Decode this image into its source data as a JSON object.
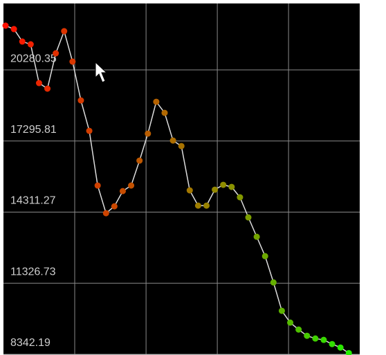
{
  "chart_data": {
    "type": "line",
    "x": [
      0,
      1,
      2,
      3,
      4,
      5,
      6,
      7,
      8,
      9,
      10,
      11,
      12,
      13,
      14,
      15,
      16,
      17,
      18,
      19,
      20,
      21,
      22,
      23,
      24,
      25,
      26,
      27,
      28,
      29,
      30,
      31,
      32,
      33,
      34,
      35,
      36,
      37,
      38,
      39,
      40,
      41
    ],
    "values": [
      22140,
      21995,
      21471,
      21355,
      19728,
      19495,
      20977,
      21907,
      20629,
      19001,
      17723,
      15427,
      14265,
      14555,
      15194,
      15427,
      16473,
      17606,
      18943,
      18478,
      17316,
      17083,
      15224,
      14584,
      14584,
      15253,
      15456,
      15369,
      14933,
      14090,
      13277,
      12463,
      11359,
      10167,
      9673,
      9382,
      9121,
      9005,
      8947,
      8772,
      8627,
      8394
    ],
    "line_color": "#dddddd",
    "point_colors": [
      "#ff1100",
      "#dd3300",
      "#c84a00",
      "#aa7000",
      "#889400",
      "#55bb00",
      "#22ee00"
    ],
    "ylim": [
      8342.19,
      23070
    ],
    "yticks": [
      {
        "value": 8342.19,
        "label": "8342.19"
      },
      {
        "value": 11326.73,
        "label": "11326.73"
      },
      {
        "value": 14311.27,
        "label": "14311.27"
      },
      {
        "value": 17295.81,
        "label": "17295.81"
      },
      {
        "value": 20280.35,
        "label": "20280.35"
      }
    ],
    "xlim": [
      -0.25,
      42.3
    ],
    "xticks": [
      8.26,
      16.78,
      25.29,
      33.8
    ],
    "grid": true
  }
}
